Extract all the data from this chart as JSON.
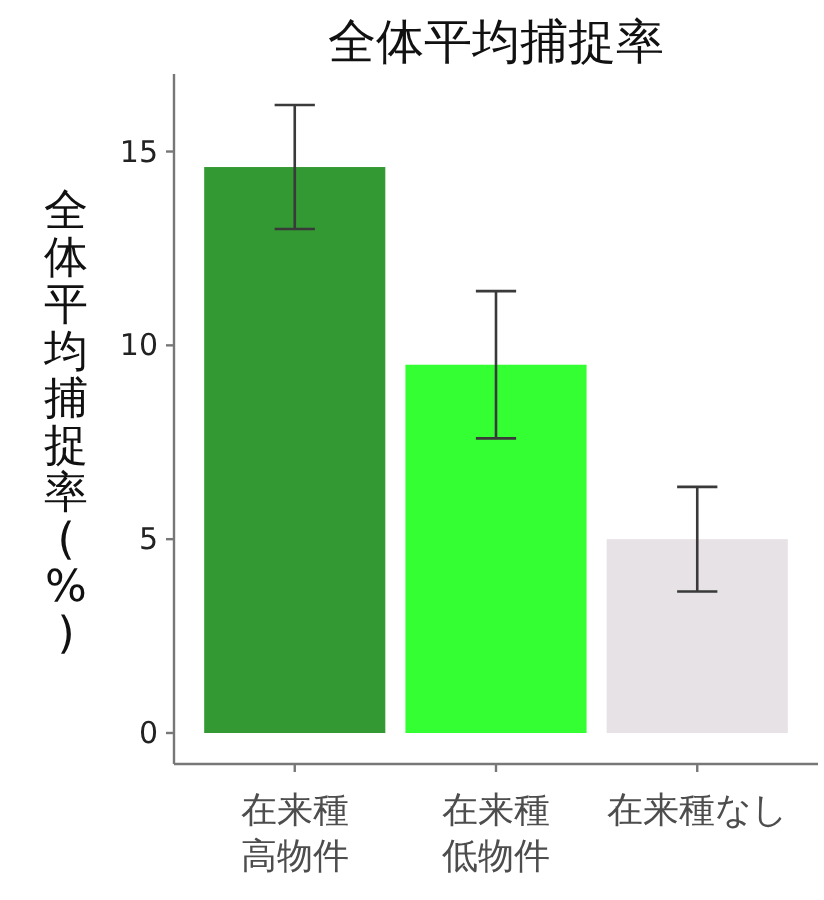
{
  "chart_data": {
    "type": "bar",
    "title": "全体平均捕捉率",
    "ylabel": "全体平均捕捉率(%)",
    "categories": [
      "在来種高物件",
      "在来種低物件",
      "在来種なし"
    ],
    "values": [
      14.6,
      9.5,
      5.0
    ],
    "errors": [
      1.6,
      1.9,
      1.35
    ],
    "colors": [
      "#339933",
      "#33ff33",
      "#e6e2e6"
    ],
    "ylim": [
      -0.8,
      17
    ],
    "yticks": [
      0,
      5,
      10,
      15
    ]
  }
}
